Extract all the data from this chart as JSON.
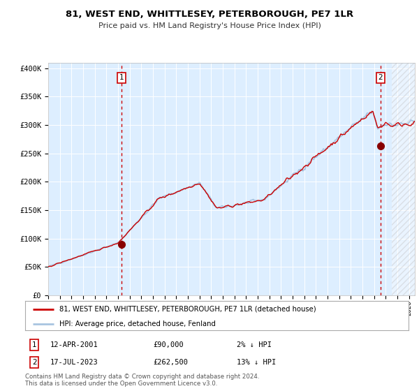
{
  "title": "81, WEST END, WHITTLESEY, PETERBOROUGH, PE7 1LR",
  "subtitle": "Price paid vs. HM Land Registry's House Price Index (HPI)",
  "hpi_color": "#a8c4e0",
  "price_color": "#cc0000",
  "bg_color": "#ddeeff",
  "grid_color": "#ffffff",
  "ylim": [
    0,
    410000
  ],
  "xlim_start": 1995.0,
  "xlim_end": 2026.5,
  "yticks": [
    0,
    50000,
    100000,
    150000,
    200000,
    250000,
    300000,
    350000,
    400000
  ],
  "ytick_labels": [
    "£0",
    "£50K",
    "£100K",
    "£150K",
    "£200K",
    "£250K",
    "£300K",
    "£350K",
    "£400K"
  ],
  "xtick_years": [
    1995,
    1996,
    1997,
    1998,
    1999,
    2000,
    2001,
    2002,
    2003,
    2004,
    2005,
    2006,
    2007,
    2008,
    2009,
    2010,
    2011,
    2012,
    2013,
    2014,
    2015,
    2016,
    2017,
    2018,
    2019,
    2020,
    2021,
    2022,
    2023,
    2024,
    2025,
    2026
  ],
  "t1_date": 2001.28,
  "t1_price": 90000,
  "t2_date": 2023.54,
  "t2_price": 262500,
  "legend_line1": "81, WEST END, WHITTLESEY, PETERBOROUGH, PE7 1LR (detached house)",
  "legend_line2": "HPI: Average price, detached house, Fenland",
  "row1_date": "12-APR-2001",
  "row1_price": "£90,000",
  "row1_note": "2% ↓ HPI",
  "row2_date": "17-JUL-2023",
  "row2_price": "£262,500",
  "row2_note": "13% ↓ HPI",
  "footnote1": "Contains HM Land Registry data © Crown copyright and database right 2024.",
  "footnote2": "This data is licensed under the Open Government Licence v3.0.",
  "future_start": 2024.5
}
